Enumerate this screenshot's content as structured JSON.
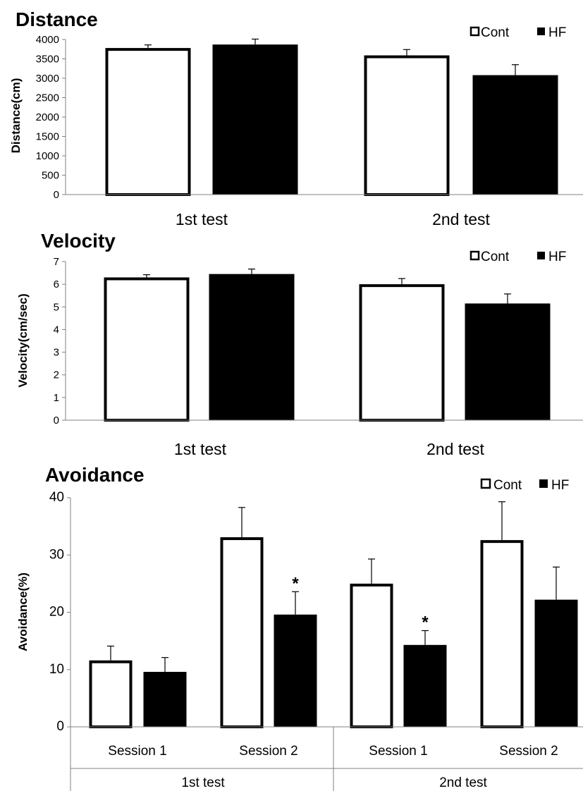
{
  "chart_data": [
    {
      "type": "bar",
      "title": "Distance",
      "ylabel": "Distance(cm)",
      "xlabel": "",
      "ylim": [
        0,
        4000
      ],
      "yticks": [
        0,
        500,
        1000,
        1500,
        2000,
        2500,
        3000,
        3500,
        4000
      ],
      "categories": [
        "1st test",
        "2nd test"
      ],
      "series": [
        {
          "name": "Cont",
          "values": [
            3780,
            3590
          ],
          "errors": [
            80,
            150
          ]
        },
        {
          "name": "HF",
          "values": [
            3870,
            3080
          ],
          "errors": [
            140,
            270
          ]
        }
      ],
      "legend_position": "top-right",
      "grid": false
    },
    {
      "type": "bar",
      "title": "Velocity",
      "ylabel": "Velocity(cm/sec)",
      "xlabel": "",
      "ylim": [
        0,
        7
      ],
      "yticks": [
        0,
        1,
        2,
        3,
        4,
        5,
        6,
        7
      ],
      "categories": [
        "1st test",
        "2nd test"
      ],
      "series": [
        {
          "name": "Cont",
          "values": [
            6.3,
            6.0
          ],
          "errors": [
            0.12,
            0.25
          ]
        },
        {
          "name": "HF",
          "values": [
            6.45,
            5.15
          ],
          "errors": [
            0.22,
            0.42
          ]
        }
      ],
      "legend_position": "top-right",
      "grid": false
    },
    {
      "type": "bar",
      "title": "Avoidance",
      "ylabel": "Avoidance(%)",
      "xlabel": "",
      "ylim": [
        0,
        40
      ],
      "yticks": [
        0,
        10,
        20,
        30,
        40
      ],
      "categories": [
        "Session 1",
        "Session 2",
        "Session 1",
        "Session 2"
      ],
      "groups": [
        "1st test",
        "2nd test"
      ],
      "series": [
        {
          "name": "Cont",
          "values": [
            11.6,
            33.1,
            25.0,
            32.6
          ],
          "errors": [
            2.5,
            5.2,
            4.3,
            6.7
          ]
        },
        {
          "name": "HF",
          "values": [
            9.6,
            19.6,
            14.3,
            22.2
          ],
          "errors": [
            2.5,
            4.0,
            2.5,
            5.7
          ]
        }
      ],
      "annotations": [
        {
          "text": "*",
          "category_index": 1,
          "series": "HF"
        },
        {
          "text": "*",
          "category_index": 2,
          "series": "HF"
        }
      ],
      "legend_position": "top-right",
      "grid": false
    }
  ]
}
